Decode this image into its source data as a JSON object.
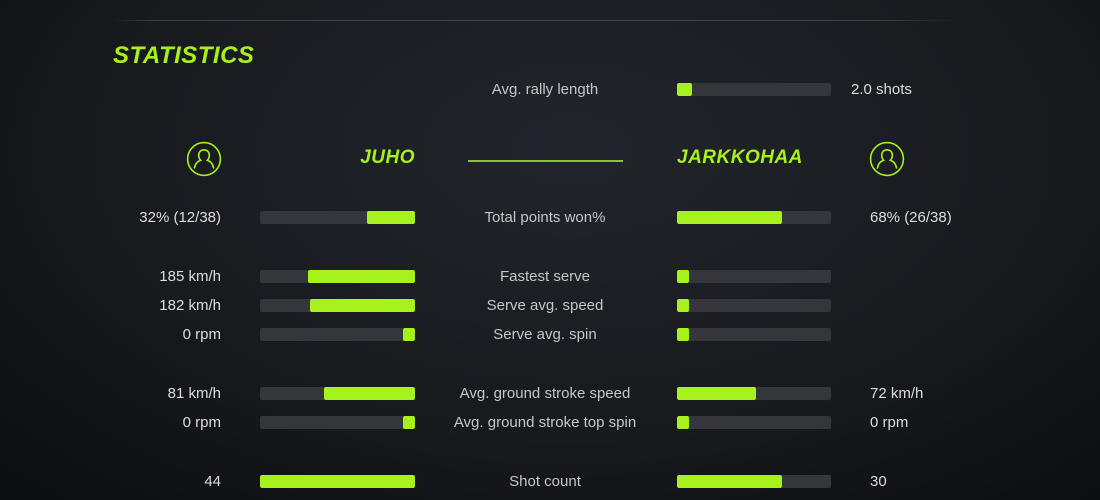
{
  "title": "STATISTICS",
  "colors": {
    "accent": "#a7f11d",
    "bar_track": "#35363b",
    "label_text": "#c5c6ca",
    "value_text": "#dcdde1",
    "background": "#0b0c0f"
  },
  "players": {
    "left": {
      "name": "JUHO",
      "icon": "person-icon"
    },
    "right": {
      "name": "JARKKOHAA",
      "icon": "person-icon"
    }
  },
  "shared_stat": {
    "label": "Avg. rally length",
    "value": "2.0 shots",
    "fill_pct": 10
  },
  "rows": [
    {
      "label": "Total points won%",
      "left_value": "32% (12/38)",
      "left_fill": 31,
      "right_value": "68% (26/38)",
      "right_fill": 68
    },
    {
      "label": "Fastest serve",
      "left_value": "185 km/h",
      "left_fill": 69,
      "right_value": "",
      "right_fill": 8
    },
    {
      "label": "Serve avg. speed",
      "left_value": "182 km/h",
      "left_fill": 68,
      "right_value": "",
      "right_fill": 8
    },
    {
      "label": "Serve avg. spin",
      "left_value": "0 rpm",
      "left_fill": 8,
      "right_value": "",
      "right_fill": 8
    },
    {
      "label": "Avg. ground stroke speed",
      "left_value": "81 km/h",
      "left_fill": 59,
      "right_value": "72 km/h",
      "right_fill": 51
    },
    {
      "label": "Avg. ground stroke top spin",
      "left_value": "0 rpm",
      "left_fill": 8,
      "right_value": "0 rpm",
      "right_fill": 8
    },
    {
      "label": "Shot count",
      "left_value": "44",
      "left_fill": 100,
      "right_value": "30",
      "right_fill": 68
    }
  ]
}
